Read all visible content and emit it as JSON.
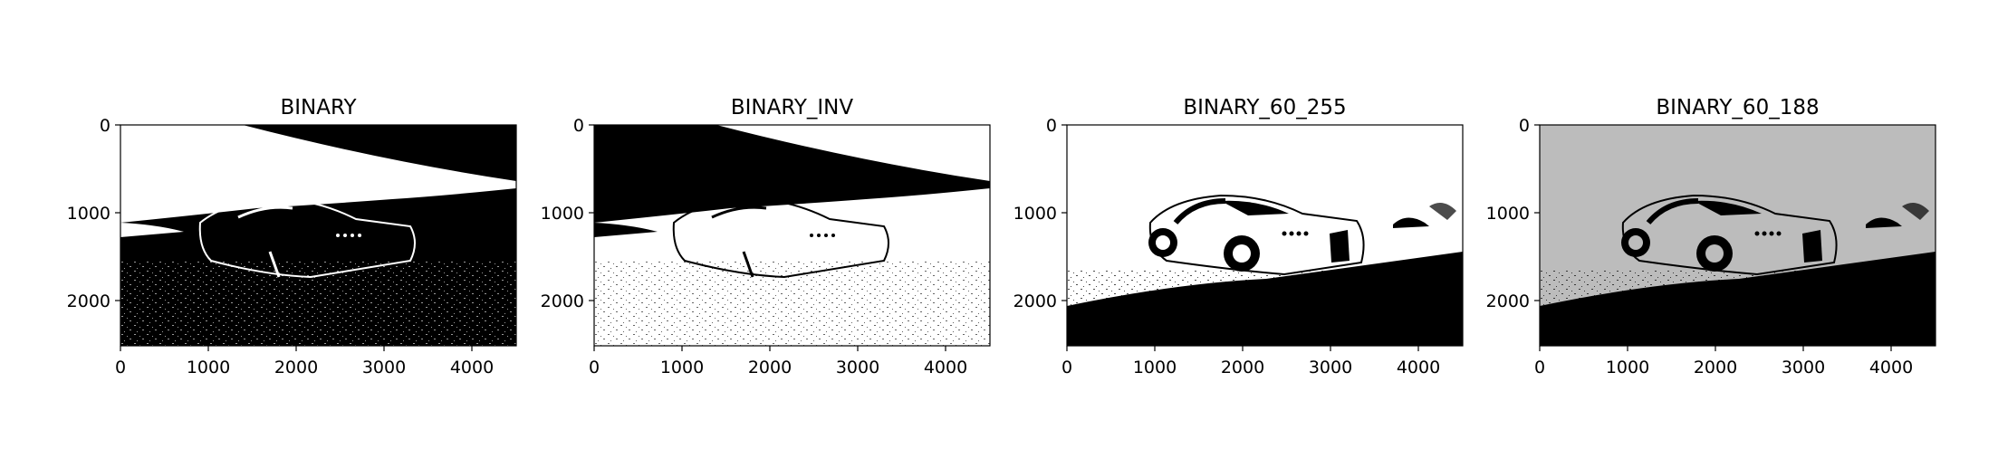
{
  "panels": [
    {
      "title": "BINARY",
      "xticks": [
        "0",
        "1000",
        "2000",
        "3000",
        "4000"
      ],
      "yticks": [
        "0",
        "1000",
        "2000"
      ],
      "colors": {
        "background": "#000000",
        "foreground": "#ffffff"
      }
    },
    {
      "title": "BINARY_INV",
      "xticks": [
        "0",
        "1000",
        "2000",
        "3000",
        "4000"
      ],
      "yticks": [
        "0",
        "1000",
        "2000"
      ],
      "colors": {
        "background": "#ffffff",
        "foreground": "#000000"
      }
    },
    {
      "title": "BINARY_60_255",
      "xticks": [
        "0",
        "1000",
        "2000",
        "3000",
        "4000"
      ],
      "yticks": [
        "0",
        "1000",
        "2000"
      ],
      "colors": {
        "background": "#ffffff",
        "foreground": "#000000"
      }
    },
    {
      "title": "BINARY_60_188",
      "xticks": [
        "0",
        "1000",
        "2000",
        "3000",
        "4000"
      ],
      "yticks": [
        "0",
        "1000",
        "2000"
      ],
      "colors": {
        "background": "#bcbcbc",
        "foreground": "#000000"
      }
    }
  ]
}
